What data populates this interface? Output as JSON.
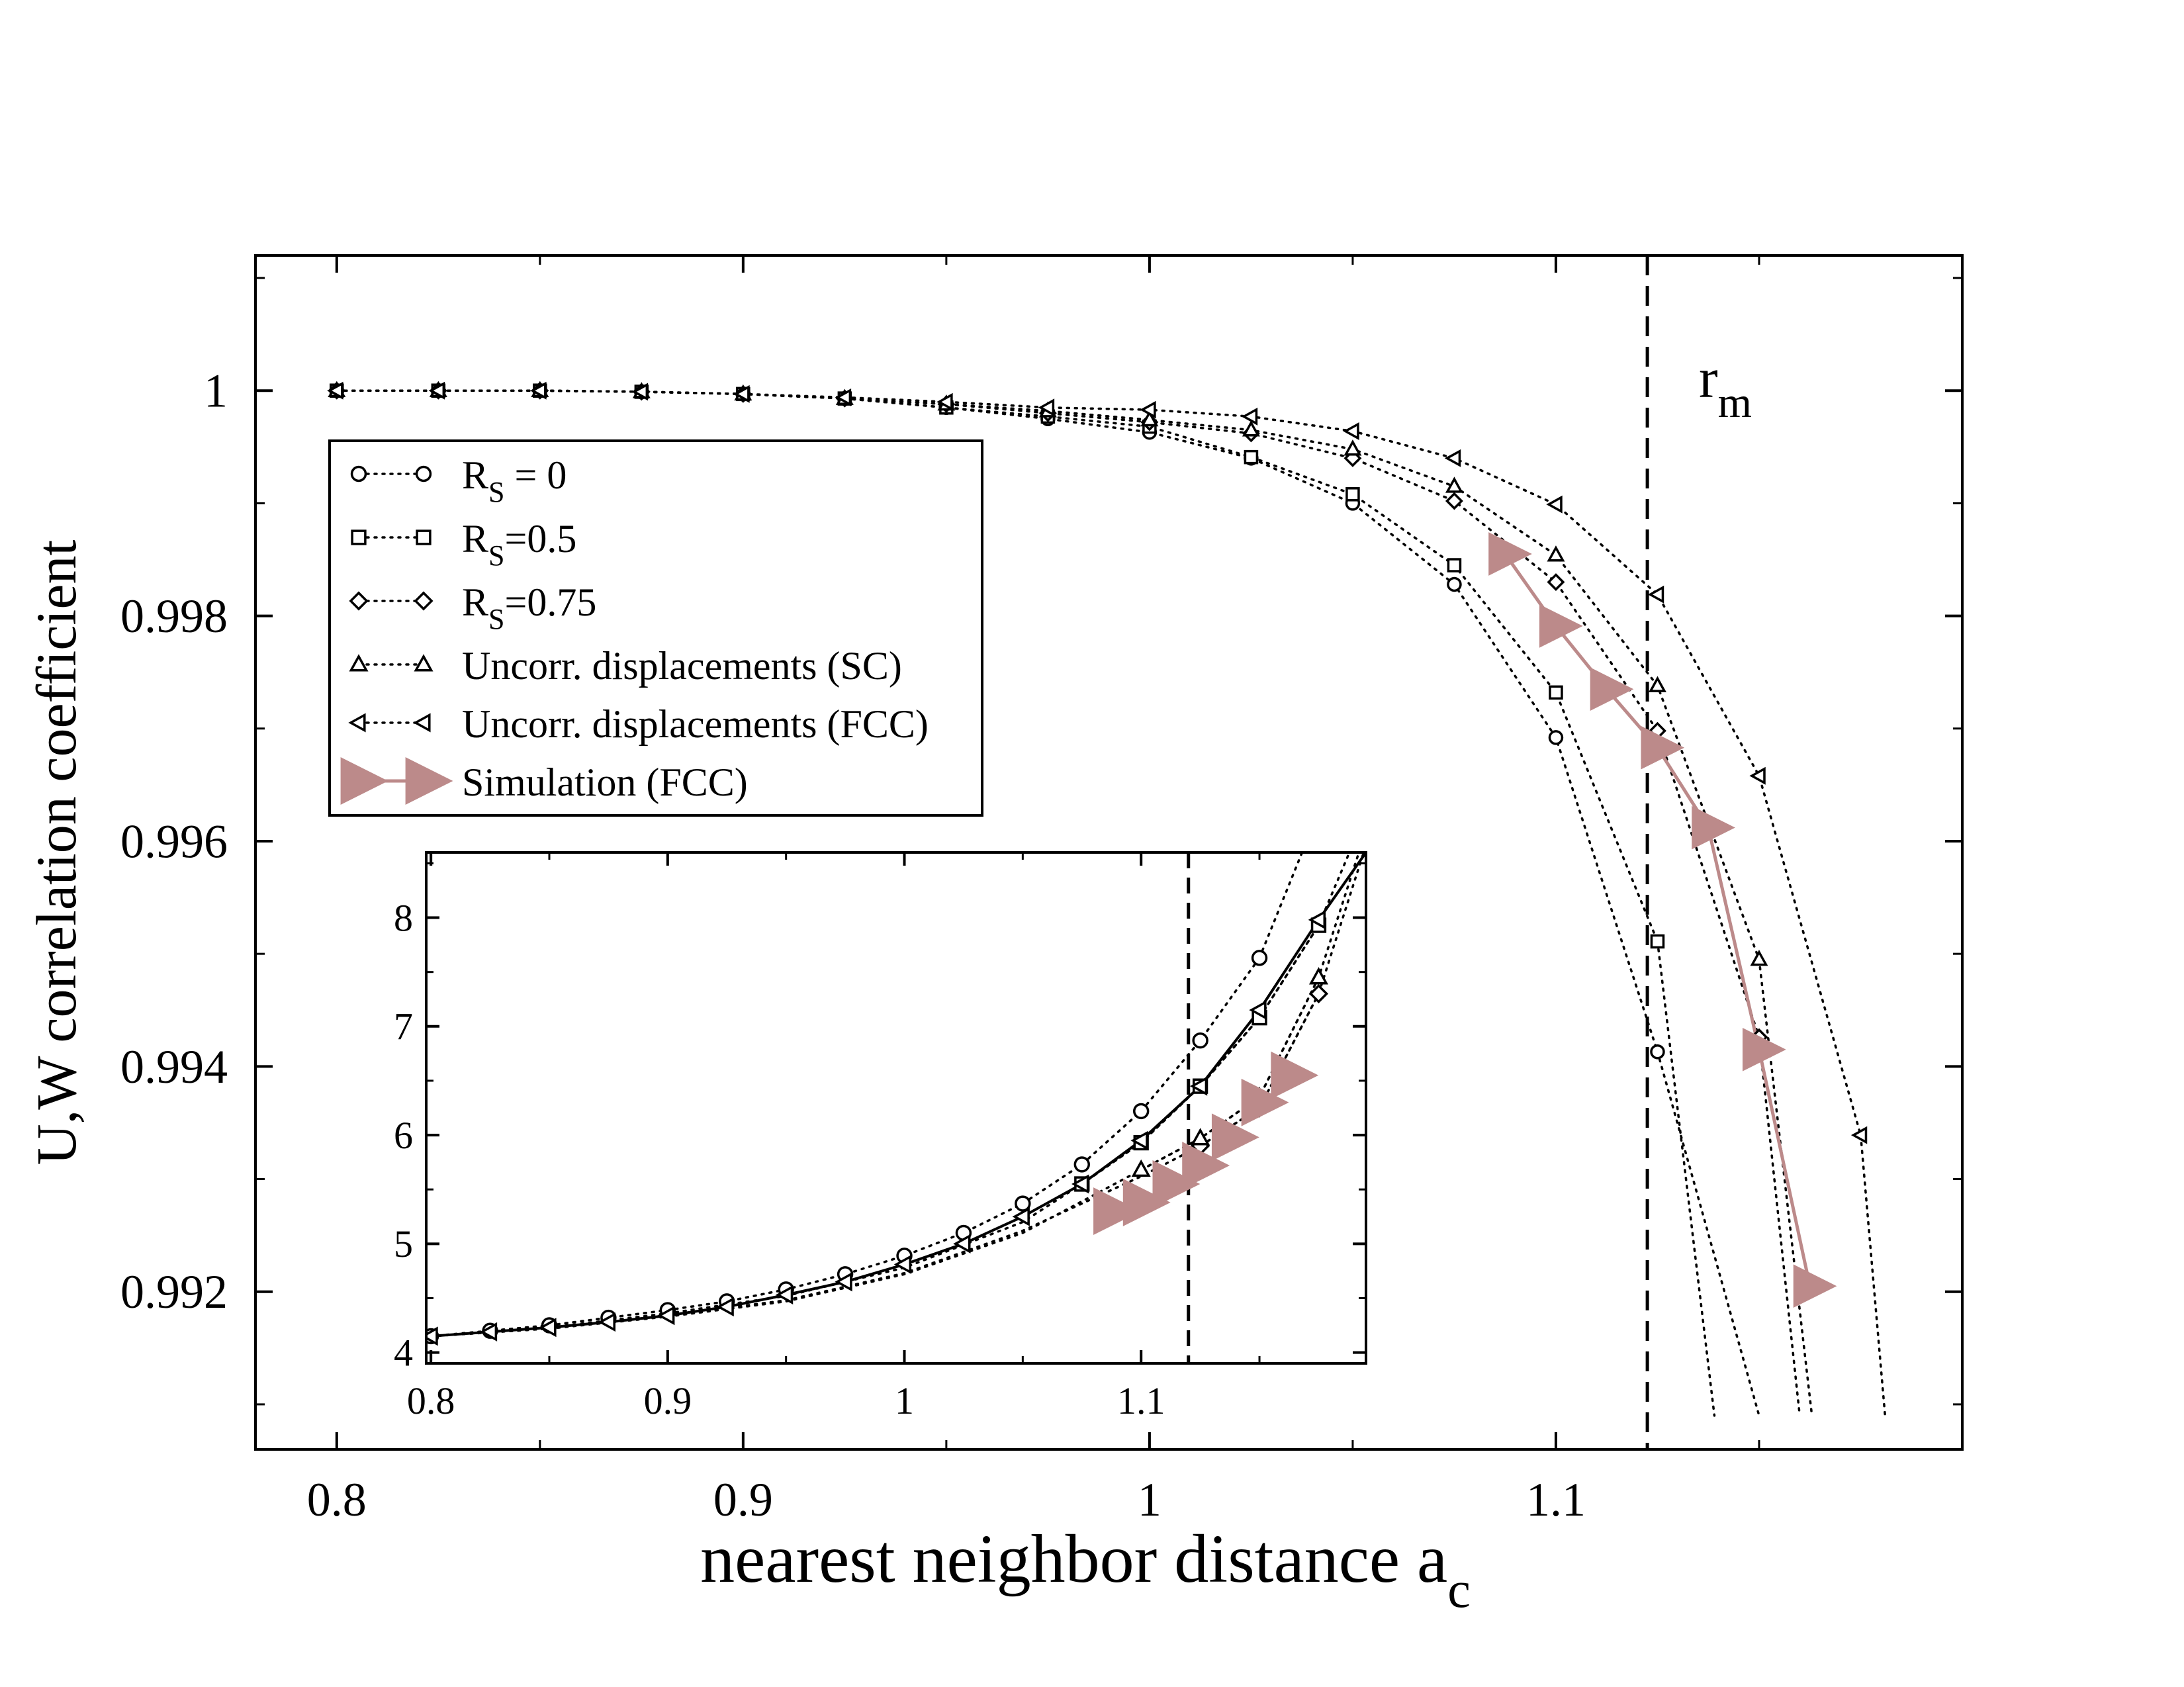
{
  "chart_data": [
    {
      "type": "line",
      "title": "",
      "xlabel": "nearest neighbor distance a",
      "xlabel_sub": "c",
      "ylabel": "U,W correlation coefficient",
      "xlim": [
        0.78,
        1.2
      ],
      "ylim": [
        0.9906,
        1.0012
      ],
      "xticks": [
        {
          "v": 0.8,
          "label": "0.8"
        },
        {
          "v": 0.9,
          "label": "0.9"
        },
        {
          "v": 1.0,
          "label": "1"
        },
        {
          "v": 1.1,
          "label": "1.1"
        }
      ],
      "yticks": [
        {
          "v": 0.992,
          "label": "0.992"
        },
        {
          "v": 0.994,
          "label": "0.994"
        },
        {
          "v": 0.996,
          "label": "0.996"
        },
        {
          "v": 0.998,
          "label": "0.998"
        },
        {
          "v": 1.0,
          "label": "1"
        }
      ],
      "vline": {
        "x": 1.1225,
        "label": "r",
        "label_sub": "m"
      },
      "legend": {
        "position": "top-left"
      },
      "series": [
        {
          "name": "R_S = 0",
          "legend_main": "R",
          "legend_sub": "S",
          "legend_rest": " = 0",
          "marker": "circle",
          "line": "dotted",
          "color": "#000000",
          "x": [
            0.8,
            0.825,
            0.85,
            0.875,
            0.9,
            0.925,
            0.95,
            0.975,
            1.0,
            1.025,
            1.05,
            1.075,
            1.1,
            1.125
          ],
          "y": [
            1.0,
            1.0,
            1.0,
            0.99999,
            0.99997,
            0.99993,
            0.99985,
            0.99975,
            0.99963,
            0.9994,
            0.999,
            0.99828,
            0.99692,
            0.99413
          ],
          "curve_x": [
            1.125,
            1.15
          ],
          "curve_y": [
            0.99413,
            0.9909
          ]
        },
        {
          "name": "R_S=0.5",
          "legend_main": "R",
          "legend_sub": "S",
          "legend_rest": "=0.5",
          "marker": "square",
          "line": "dotted",
          "color": "#000000",
          "x": [
            0.8,
            0.825,
            0.85,
            0.875,
            0.9,
            0.925,
            0.95,
            0.975,
            1.0,
            1.025,
            1.05,
            1.075,
            1.1,
            1.125
          ],
          "y": [
            1.0,
            1.0,
            1.0,
            0.99999,
            0.99997,
            0.99993,
            0.99985,
            0.99977,
            0.99968,
            0.99941,
            0.99908,
            0.99845,
            0.99732,
            0.99511
          ],
          "curve_x": [
            1.125,
            1.139
          ],
          "curve_y": [
            0.99511,
            0.9909
          ]
        },
        {
          "name": "R_S=0.75",
          "legend_main": "R",
          "legend_sub": "S",
          "legend_rest": "=0.75",
          "marker": "diamond",
          "line": "dotted",
          "color": "#000000",
          "x": [
            0.8,
            0.825,
            0.85,
            0.875,
            0.9,
            0.925,
            0.95,
            0.975,
            1.0,
            1.025,
            1.05,
            1.075,
            1.1,
            1.125,
            1.15
          ],
          "y": [
            1.0,
            1.0,
            1.0,
            0.99999,
            0.99997,
            0.99993,
            0.99988,
            0.9998,
            0.99972,
            0.99962,
            0.9994,
            0.99902,
            0.9983,
            0.99698,
            0.99426
          ],
          "curve_x": [
            1.15,
            1.16
          ],
          "curve_y": [
            0.99426,
            0.9909
          ]
        },
        {
          "name": "Uncorr. displacements (SC)",
          "legend_main": "Uncorr. displacements (SC)",
          "legend_sub": "",
          "legend_rest": "",
          "marker": "triangle-up",
          "line": "dotted",
          "color": "#000000",
          "x": [
            0.8,
            0.825,
            0.85,
            0.875,
            0.9,
            0.925,
            0.95,
            0.975,
            1.0,
            1.025,
            1.05,
            1.075,
            1.1,
            1.125,
            1.15
          ],
          "y": [
            1.0,
            1.0,
            1.0,
            0.99999,
            0.99997,
            0.99993,
            0.99988,
            0.99982,
            0.99974,
            0.99965,
            0.99948,
            0.99915,
            0.99854,
            0.99738,
            0.99495
          ],
          "curve_x": [
            1.15,
            1.163
          ],
          "curve_y": [
            0.99495,
            0.9909
          ]
        },
        {
          "name": "Uncorr. displacements (FCC)",
          "legend_main": "Uncorr. displacements (FCC)",
          "legend_sub": "",
          "legend_rest": "",
          "marker": "triangle-left",
          "line": "dotted",
          "color": "#000000",
          "x": [
            0.8,
            0.825,
            0.85,
            0.875,
            0.9,
            0.925,
            0.95,
            0.975,
            1.0,
            1.025,
            1.05,
            1.075,
            1.1,
            1.125,
            1.15,
            1.175
          ],
          "y": [
            1.0,
            1.0,
            1.0,
            0.99999,
            0.99997,
            0.99994,
            0.9999,
            0.99985,
            0.99983,
            0.99977,
            0.99964,
            0.9994,
            0.99899,
            0.99819,
            0.99658,
            0.99339
          ],
          "curve_x": [
            1.175,
            1.181
          ],
          "curve_y": [
            0.99339,
            0.9909
          ]
        },
        {
          "name": "Simulation (FCC)",
          "legend_main": "Simulation (FCC)",
          "legend_sub": "",
          "legend_rest": "",
          "marker": "triangle-right-filled",
          "line": "solid",
          "color": "#bc8a8a",
          "x": [
            1.0875,
            1.1,
            1.1125,
            1.125,
            1.1375,
            1.15,
            1.1625
          ],
          "y": [
            0.99855,
            0.99791,
            0.99735,
            0.99683,
            0.99612,
            0.99415,
            0.99205
          ]
        }
      ]
    },
    {
      "type": "line",
      "title": "",
      "xlabel": "",
      "ylabel": "",
      "xlim": [
        0.798,
        1.195
      ],
      "ylim": [
        3.9,
        8.6
      ],
      "xticks": [
        {
          "v": 0.8,
          "label": "0.8"
        },
        {
          "v": 0.9,
          "label": "0.9"
        },
        {
          "v": 1.0,
          "label": "1"
        },
        {
          "v": 1.1,
          "label": "1.1"
        }
      ],
      "yticks": [
        {
          "v": 4,
          "label": "4"
        },
        {
          "v": 5,
          "label": "5"
        },
        {
          "v": 6,
          "label": "6"
        },
        {
          "v": 7,
          "label": "7"
        },
        {
          "v": 8,
          "label": "8"
        }
      ],
      "vline": {
        "x": 1.12
      },
      "series": [
        {
          "name": "R_S = 0",
          "marker": "circle",
          "line": "dotted",
          "color": "#000000",
          "x": [
            0.8,
            0.825,
            0.85,
            0.875,
            0.9,
            0.925,
            0.95,
            0.975,
            1.0,
            1.025,
            1.05,
            1.075,
            1.1,
            1.125,
            1.15
          ],
          "y": [
            4.15,
            4.2,
            4.25,
            4.32,
            4.39,
            4.47,
            4.58,
            4.72,
            4.89,
            5.1,
            5.37,
            5.73,
            6.22,
            6.87,
            7.63
          ],
          "curve_x": [
            1.15,
            1.168
          ],
          "curve_y": [
            7.63,
            8.6
          ]
        },
        {
          "name": "R_S=0.5",
          "marker": "square",
          "line": "dotted",
          "color": "#000000",
          "x": [
            1.075,
            1.1,
            1.125,
            1.15,
            1.175
          ],
          "y": [
            5.55,
            5.93,
            6.45,
            7.08,
            7.93
          ],
          "curve_x": [
            0.8,
            0.85,
            0.9,
            0.95,
            1.0,
            1.05,
            1.075,
            1.1,
            1.125,
            1.15,
            1.175,
            1.188
          ],
          "curve_y": [
            4.15,
            4.23,
            4.36,
            4.52,
            4.78,
            5.2,
            5.55,
            5.93,
            6.45,
            7.08,
            7.93,
            8.6
          ]
        },
        {
          "name": "R_S=0.75",
          "marker": "diamond",
          "line": "dotted",
          "color": "#000000",
          "x": [
            1.125,
            1.15,
            1.175
          ],
          "y": [
            5.9,
            6.25,
            7.3
          ],
          "curve_x": [
            0.8,
            0.85,
            0.9,
            0.95,
            1.0,
            1.05,
            1.1,
            1.125,
            1.15,
            1.175,
            1.194
          ],
          "curve_y": [
            4.15,
            4.22,
            4.34,
            4.48,
            4.73,
            5.12,
            5.62,
            5.9,
            6.25,
            7.3,
            8.6
          ]
        },
        {
          "name": "Uncorr. displacements (SC)",
          "marker": "triangle-up",
          "line": "dotted",
          "color": "#000000",
          "x": [
            1.1,
            1.125,
            1.15,
            1.175
          ],
          "y": [
            5.68,
            5.97,
            6.35,
            7.45
          ],
          "curve_x": [
            0.8,
            0.85,
            0.9,
            0.95,
            1.0,
            1.05,
            1.1,
            1.125,
            1.15,
            1.175,
            1.192
          ],
          "curve_y": [
            4.15,
            4.22,
            4.33,
            4.47,
            4.72,
            5.1,
            5.68,
            5.97,
            6.35,
            7.45,
            8.6
          ]
        },
        {
          "name": "Uncorr. displacements (FCC)",
          "marker": "triangle-left",
          "line": "solid",
          "color": "#000000",
          "x": [
            0.8,
            0.825,
            0.85,
            0.875,
            0.9,
            0.925,
            0.95,
            0.975,
            1.0,
            1.025,
            1.05,
            1.075,
            1.1,
            1.125,
            1.15,
            1.175
          ],
          "y": [
            4.15,
            4.19,
            4.23,
            4.28,
            4.34,
            4.42,
            4.53,
            4.65,
            4.81,
            5.0,
            5.25,
            5.55,
            5.95,
            6.45,
            7.15,
            7.98
          ],
          "curve_x": [
            1.175,
            1.195
          ],
          "curve_y": [
            7.98,
            8.6
          ]
        },
        {
          "name": "Simulation (FCC)",
          "marker": "triangle-right-filled",
          "line": "none",
          "color": "#bc8a8a",
          "x": [
            1.0875,
            1.1,
            1.1125,
            1.125,
            1.1375,
            1.15,
            1.1625
          ],
          "y": [
            5.3,
            5.38,
            5.55,
            5.72,
            5.98,
            6.3,
            6.55
          ]
        }
      ]
    }
  ]
}
